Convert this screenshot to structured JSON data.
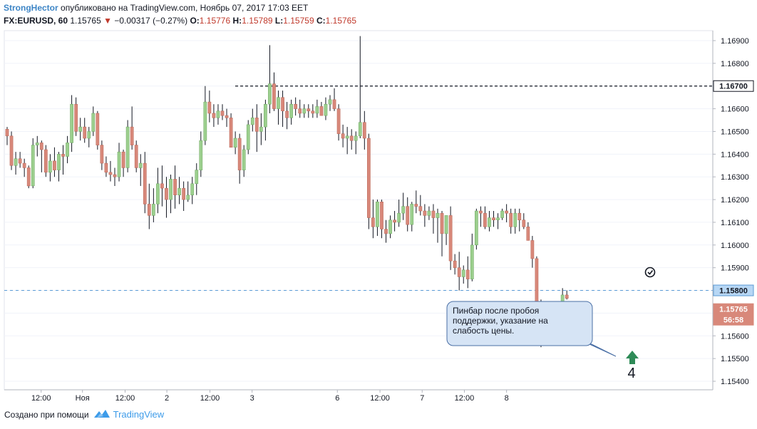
{
  "header": {
    "author": "StrongHector",
    "published": "опубликовано на TradingView.com, Ноябрь 07, 2017 17:03 EET",
    "symbol": "FX:EURUSD, 60",
    "last": "1.15765",
    "change_arrow": "▼",
    "change": "−0.00317 (−0.27%)",
    "o_label": "O:",
    "o_value": "1.15776",
    "h_label": "H:",
    "h_value": "1.15789",
    "l_label": "L:",
    "l_value": "1.15759",
    "c_label": "C:",
    "c_value": "1.15765"
  },
  "annotation": {
    "text": "Пинбар после пробоя поддержки, указание на слабость цены.",
    "number": "4"
  },
  "price_badges": {
    "level": "1.16700",
    "support": "1.15800",
    "current": "1.15765",
    "countdown": "56:58"
  },
  "footer": {
    "made_with": "Создано при помощи",
    "brand": "TradingView"
  },
  "colors": {
    "up": "#9ccf8e",
    "down": "#d8887a",
    "wick": "#131722",
    "support_line": "#5b9bd5",
    "resistance_line": "#131722",
    "arrow": "#2e8b57"
  },
  "chart_data": {
    "type": "candlestick",
    "timeframe": "60",
    "ylim": [
      1.1537,
      1.17
    ],
    "y_ticks": [
      "1.16900",
      "1.16800",
      "1.16700",
      "1.16600",
      "1.16500",
      "1.16400",
      "1.16300",
      "1.16200",
      "1.16100",
      "1.16000",
      "1.15900",
      "1.15800",
      "1.15700",
      "1.15600",
      "1.15500",
      "1.15400"
    ],
    "x_labels": [
      {
        "label": "12:00",
        "index": 7.9
      },
      {
        "label": "Ноя",
        "index": 17.5
      },
      {
        "label": "12:00",
        "index": 27.4
      },
      {
        "label": "2",
        "index": 37.1
      },
      {
        "label": "12:00",
        "index": 47.1
      },
      {
        "label": "3",
        "index": 56.9
      },
      {
        "label": "6",
        "index": 76.7
      },
      {
        "label": "12:00",
        "index": 86.6
      },
      {
        "label": "7",
        "index": 96.4
      },
      {
        "label": "12:00",
        "index": 106.2
      },
      {
        "label": "8",
        "index": 116.0
      }
    ],
    "horizontal_lines": [
      {
        "price": 1.167,
        "style": "dashed",
        "role": "resistance"
      },
      {
        "price": 1.158,
        "style": "dashed",
        "role": "support"
      }
    ],
    "candles": [
      [
        1.1651,
        1.1652,
        1.1644,
        1.1648
      ],
      [
        1.1648,
        1.165,
        1.1633,
        1.1635
      ],
      [
        1.1635,
        1.1641,
        1.1631,
        1.1638
      ],
      [
        1.1638,
        1.1641,
        1.1634,
        1.1636
      ],
      [
        1.1636,
        1.1638,
        1.163,
        1.1634
      ],
      [
        1.1634,
        1.1635,
        1.1625,
        1.1626
      ],
      [
        1.1626,
        1.1647,
        1.1625,
        1.1644
      ],
      [
        1.1644,
        1.1648,
        1.1639,
        1.1645
      ],
      [
        1.1645,
        1.1646,
        1.1632,
        1.1642
      ],
      [
        1.1642,
        1.1644,
        1.163,
        1.1632
      ],
      [
        1.1632,
        1.164,
        1.1628,
        1.1637
      ],
      [
        1.1637,
        1.1643,
        1.163,
        1.1633
      ],
      [
        1.1633,
        1.1641,
        1.1628,
        1.164
      ],
      [
        1.164,
        1.1644,
        1.1631,
        1.1639
      ],
      [
        1.1639,
        1.1648,
        1.1636,
        1.1645
      ],
      [
        1.1645,
        1.1666,
        1.1641,
        1.1662
      ],
      [
        1.1662,
        1.1665,
        1.1648,
        1.165
      ],
      [
        1.165,
        1.1656,
        1.1646,
        1.1652
      ],
      [
        1.1652,
        1.1656,
        1.1645,
        1.1647
      ],
      [
        1.1647,
        1.1652,
        1.1643,
        1.165
      ],
      [
        1.165,
        1.1661,
        1.1648,
        1.1658
      ],
      [
        1.1658,
        1.1659,
        1.1642,
        1.1644
      ],
      [
        1.1644,
        1.1646,
        1.1633,
        1.1636
      ],
      [
        1.1636,
        1.1639,
        1.163,
        1.1632
      ],
      [
        1.1632,
        1.1637,
        1.1628,
        1.1631
      ],
      [
        1.1631,
        1.1634,
        1.1626,
        1.163
      ],
      [
        1.163,
        1.1645,
        1.1628,
        1.1641
      ],
      [
        1.1641,
        1.1642,
        1.163,
        1.1634
      ],
      [
        1.1634,
        1.1655,
        1.1632,
        1.1652
      ],
      [
        1.1652,
        1.1661,
        1.1642,
        1.1644
      ],
      [
        1.1644,
        1.1646,
        1.1632,
        1.1634
      ],
      [
        1.1634,
        1.164,
        1.1626,
        1.1636
      ],
      [
        1.1636,
        1.1641,
        1.1614,
        1.1618
      ],
      [
        1.1618,
        1.1627,
        1.1607,
        1.1613
      ],
      [
        1.1613,
        1.1625,
        1.161,
        1.1618
      ],
      [
        1.1618,
        1.1634,
        1.1614,
        1.1627
      ],
      [
        1.1627,
        1.1635,
        1.1617,
        1.1625
      ],
      [
        1.1625,
        1.163,
        1.1612,
        1.162
      ],
      [
        1.162,
        1.1631,
        1.1614,
        1.1629
      ],
      [
        1.1629,
        1.1635,
        1.1616,
        1.1622
      ],
      [
        1.1622,
        1.163,
        1.1618,
        1.1625
      ],
      [
        1.1625,
        1.1628,
        1.1615,
        1.162
      ],
      [
        1.162,
        1.1628,
        1.1619,
        1.1622
      ],
      [
        1.1622,
        1.163,
        1.1618,
        1.1627
      ],
      [
        1.1627,
        1.1636,
        1.1622,
        1.1633
      ],
      [
        1.1633,
        1.165,
        1.163,
        1.1646
      ],
      [
        1.1646,
        1.167,
        1.1644,
        1.1663
      ],
      [
        1.1663,
        1.1668,
        1.1654,
        1.1658
      ],
      [
        1.1658,
        1.1662,
        1.1652,
        1.1656
      ],
      [
        1.1656,
        1.1662,
        1.1653,
        1.1659
      ],
      [
        1.1659,
        1.1662,
        1.1655,
        1.1657
      ],
      [
        1.1657,
        1.166,
        1.1652,
        1.1656
      ],
      [
        1.1656,
        1.1658,
        1.1643,
        1.1643
      ],
      [
        1.1643,
        1.165,
        1.164,
        1.1647
      ],
      [
        1.1647,
        1.1649,
        1.1627,
        1.1633
      ],
      [
        1.1633,
        1.1644,
        1.163,
        1.1642
      ],
      [
        1.1642,
        1.1655,
        1.164,
        1.1653
      ],
      [
        1.1653,
        1.166,
        1.165,
        1.1656
      ],
      [
        1.1656,
        1.1662,
        1.1641,
        1.165
      ],
      [
        1.165,
        1.1658,
        1.1644,
        1.1652
      ],
      [
        1.1652,
        1.1664,
        1.1646,
        1.1662
      ],
      [
        1.1662,
        1.1688,
        1.1658,
        1.1671
      ],
      [
        1.1671,
        1.1676,
        1.1659,
        1.166
      ],
      [
        1.166,
        1.1668,
        1.1653,
        1.1665
      ],
      [
        1.1665,
        1.1668,
        1.1652,
        1.1659
      ],
      [
        1.1659,
        1.1663,
        1.1651,
        1.1656
      ],
      [
        1.1656,
        1.1664,
        1.1653,
        1.1662
      ],
      [
        1.1662,
        1.1665,
        1.1657,
        1.166
      ],
      [
        1.166,
        1.1664,
        1.1656,
        1.1658
      ],
      [
        1.1658,
        1.1662,
        1.1656,
        1.166
      ],
      [
        1.166,
        1.1662,
        1.1656,
        1.1659
      ],
      [
        1.1659,
        1.1662,
        1.1656,
        1.1658
      ],
      [
        1.1658,
        1.1664,
        1.1656,
        1.1661
      ],
      [
        1.1661,
        1.1663,
        1.1657,
        1.1657
      ],
      [
        1.1657,
        1.1665,
        1.1655,
        1.1662
      ],
      [
        1.1662,
        1.1666,
        1.1659,
        1.1664
      ],
      [
        1.1664,
        1.1669,
        1.1659,
        1.166
      ],
      [
        1.166,
        1.1662,
        1.1646,
        1.1649
      ],
      [
        1.1649,
        1.1653,
        1.1643,
        1.1647
      ],
      [
        1.1647,
        1.1652,
        1.164,
        1.1648
      ],
      [
        1.1648,
        1.1651,
        1.1642,
        1.1646
      ],
      [
        1.1646,
        1.165,
        1.164,
        1.1648
      ],
      [
        1.1648,
        1.1692,
        1.1647,
        1.1654
      ],
      [
        1.1654,
        1.1659,
        1.1642,
        1.1647
      ],
      [
        1.1647,
        1.1649,
        1.1607,
        1.1612
      ],
      [
        1.1612,
        1.162,
        1.1603,
        1.1608
      ],
      [
        1.1608,
        1.162,
        1.1604,
        1.1619
      ],
      [
        1.1619,
        1.162,
        1.1603,
        1.1607
      ],
      [
        1.1607,
        1.1611,
        1.1601,
        1.1605
      ],
      [
        1.1605,
        1.1613,
        1.1603,
        1.1611
      ],
      [
        1.1611,
        1.1615,
        1.1606,
        1.161
      ],
      [
        1.161,
        1.162,
        1.1608,
        1.1614
      ],
      [
        1.1614,
        1.1623,
        1.1611,
        1.1617
      ],
      [
        1.1617,
        1.1621,
        1.1606,
        1.1609
      ],
      [
        1.1609,
        1.1619,
        1.1606,
        1.1618
      ],
      [
        1.1618,
        1.1624,
        1.1614,
        1.1617
      ],
      [
        1.1617,
        1.1622,
        1.1613,
        1.1615
      ],
      [
        1.1615,
        1.1618,
        1.1608,
        1.1613
      ],
      [
        1.1613,
        1.1617,
        1.1611,
        1.1615
      ],
      [
        1.1615,
        1.1618,
        1.1605,
        1.1612
      ],
      [
        1.1612,
        1.1616,
        1.1601,
        1.1614
      ],
      [
        1.1614,
        1.1615,
        1.1595,
        1.1605
      ],
      [
        1.1605,
        1.1613,
        1.16,
        1.1613
      ],
      [
        1.1613,
        1.1617,
        1.1589,
        1.1593
      ],
      [
        1.1593,
        1.1596,
        1.1587,
        1.159
      ],
      [
        1.159,
        1.1597,
        1.158,
        1.1586
      ],
      [
        1.1586,
        1.1591,
        1.1583,
        1.1589
      ],
      [
        1.1589,
        1.1595,
        1.1581,
        1.1585
      ],
      [
        1.1585,
        1.1605,
        1.1584,
        1.16
      ],
      [
        1.16,
        1.1616,
        1.1598,
        1.1615
      ],
      [
        1.1615,
        1.1617,
        1.1608,
        1.1614
      ],
      [
        1.1614,
        1.1617,
        1.1607,
        1.1608
      ],
      [
        1.1608,
        1.1615,
        1.1606,
        1.1612
      ],
      [
        1.1612,
        1.1615,
        1.1608,
        1.1611
      ],
      [
        1.1611,
        1.1614,
        1.1607,
        1.1612
      ],
      [
        1.1612,
        1.1616,
        1.1611,
        1.1615
      ],
      [
        1.1615,
        1.1618,
        1.161,
        1.1614
      ],
      [
        1.1614,
        1.1616,
        1.1605,
        1.1608
      ],
      [
        1.1608,
        1.1616,
        1.1605,
        1.1614
      ],
      [
        1.1614,
        1.1616,
        1.1606,
        1.1611
      ],
      [
        1.1611,
        1.1614,
        1.1607,
        1.1608
      ],
      [
        1.1608,
        1.161,
        1.1602,
        1.1602
      ],
      [
        1.1602,
        1.1604,
        1.159,
        1.1594
      ],
      [
        1.1594,
        1.1595,
        1.1564,
        1.1566
      ],
      [
        1.1566,
        1.1576,
        1.1555,
        1.1567
      ],
      [
        1.1567,
        1.157,
        1.1556,
        1.1562
      ],
      [
        1.1562,
        1.1574,
        1.1557,
        1.1569
      ],
      [
        1.1569,
        1.1574,
        1.156,
        1.1564
      ],
      [
        1.1564,
        1.1571,
        1.1559,
        1.1562
      ],
      [
        1.1562,
        1.1581,
        1.1561,
        1.1578
      ],
      [
        1.1578,
        1.158,
        1.1576,
        1.15765
      ]
    ]
  }
}
